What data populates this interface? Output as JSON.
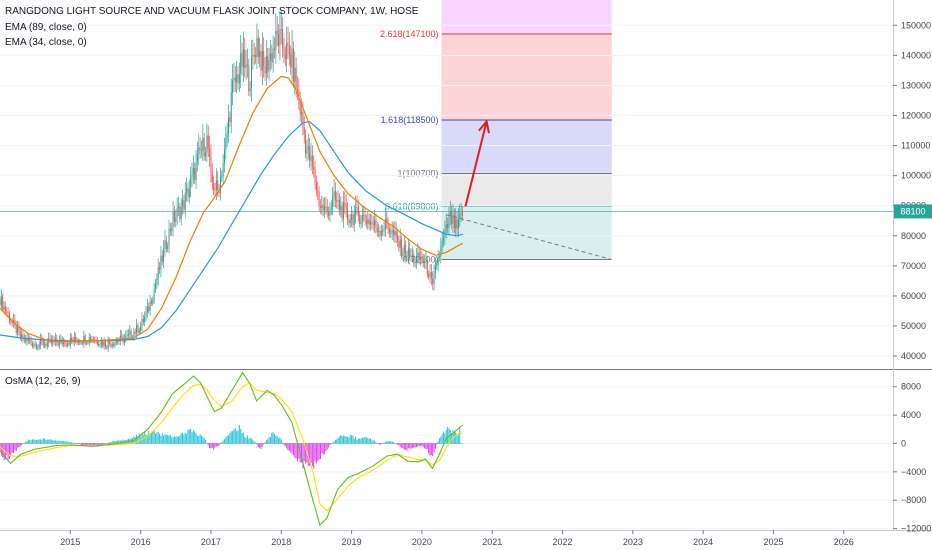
{
  "header": {
    "title": "RANGDONG LIGHT SOURCE AND VACUUM FLASK JOINT STOCK COMPANY, 1W, HOSE",
    "ema89_label": "EMA (89, close, 0)",
    "ema34_label": "EMA (34, close, 0)",
    "osma_label": "OsMA (12, 26, 9)"
  },
  "price_badge": "88100",
  "colors": {
    "candle_up": "#26a69a",
    "candle_down": "#ef5350",
    "ema34": "#f57c00",
    "ema89": "#2196f3",
    "arrow": "#e01e1e",
    "osma_pos": "#26c6da",
    "osma_neg": "#e040fb",
    "macd_line": "#66bb1a",
    "signal_line": "#ffe000"
  },
  "chart_data": [
    {
      "type": "candlestick",
      "x_axis": {
        "labels": [
          "2015",
          "2016",
          "2017",
          "2018",
          "2019",
          "2020",
          "2021",
          "2022",
          "2023",
          "2024",
          "2025",
          "2026"
        ],
        "range": [
          2014.0,
          2026.7
        ]
      },
      "y_axis": {
        "ticks": [
          40000,
          50000,
          60000,
          70000,
          80000,
          90000,
          100000,
          110000,
          120000,
          130000,
          140000,
          150000
        ],
        "range": [
          35700,
          158400
        ]
      },
      "close_series": [
        [
          2014.0,
          59000
        ],
        [
          2014.15,
          52000
        ],
        [
          2014.3,
          46000
        ],
        [
          2014.5,
          44000
        ],
        [
          2014.8,
          44500
        ],
        [
          2015.0,
          45000
        ],
        [
          2015.3,
          46000
        ],
        [
          2015.5,
          44000
        ],
        [
          2015.8,
          46000
        ],
        [
          2016.0,
          50000
        ],
        [
          2016.1,
          55000
        ],
        [
          2016.2,
          63000
        ],
        [
          2016.3,
          72000
        ],
        [
          2016.45,
          85000
        ],
        [
          2016.6,
          90000
        ],
        [
          2016.75,
          100000
        ],
        [
          2016.85,
          108000
        ],
        [
          2016.95,
          112000
        ],
        [
          2017.0,
          98000
        ],
        [
          2017.1,
          95000
        ],
        [
          2017.2,
          108000
        ],
        [
          2017.3,
          128000
        ],
        [
          2017.45,
          138000
        ],
        [
          2017.55,
          132000
        ],
        [
          2017.65,
          145000
        ],
        [
          2017.75,
          135000
        ],
        [
          2017.85,
          140000
        ],
        [
          2017.95,
          146000
        ],
        [
          2018.05,
          142000
        ],
        [
          2018.15,
          138000
        ],
        [
          2018.25,
          125000
        ],
        [
          2018.35,
          110000
        ],
        [
          2018.45,
          102000
        ],
        [
          2018.55,
          90000
        ],
        [
          2018.65,
          88000
        ],
        [
          2018.75,
          92000
        ],
        [
          2018.85,
          89000
        ],
        [
          2018.95,
          86000
        ],
        [
          2019.1,
          87000
        ],
        [
          2019.25,
          85000
        ],
        [
          2019.4,
          82000
        ],
        [
          2019.5,
          84000
        ],
        [
          2019.6,
          80000
        ],
        [
          2019.7,
          76000
        ],
        [
          2019.8,
          74000
        ],
        [
          2019.9,
          72000
        ],
        [
          2020.0,
          72500
        ],
        [
          2020.1,
          68000
        ],
        [
          2020.15,
          62000
        ],
        [
          2020.2,
          70000
        ],
        [
          2020.3,
          78000
        ],
        [
          2020.4,
          86000
        ],
        [
          2020.5,
          82000
        ],
        [
          2020.58,
          88100
        ]
      ],
      "ema34": [
        [
          2014.0,
          56000
        ],
        [
          2014.2,
          51000
        ],
        [
          2014.4,
          47500
        ],
        [
          2014.7,
          45000
        ],
        [
          2015.0,
          44800
        ],
        [
          2015.5,
          45200
        ],
        [
          2015.9,
          46000
        ],
        [
          2016.1,
          49000
        ],
        [
          2016.3,
          56000
        ],
        [
          2016.5,
          66000
        ],
        [
          2016.7,
          78000
        ],
        [
          2016.9,
          88000
        ],
        [
          2017.0,
          91000
        ],
        [
          2017.2,
          98000
        ],
        [
          2017.4,
          110000
        ],
        [
          2017.6,
          121000
        ],
        [
          2017.8,
          129000
        ],
        [
          2018.0,
          133000
        ],
        [
          2018.1,
          132500
        ],
        [
          2018.2,
          129000
        ],
        [
          2018.35,
          120000
        ],
        [
          2018.55,
          108000
        ],
        [
          2018.75,
          100000
        ],
        [
          2018.95,
          94000
        ],
        [
          2019.15,
          90000
        ],
        [
          2019.4,
          86000
        ],
        [
          2019.6,
          83000
        ],
        [
          2019.8,
          79000
        ],
        [
          2020.0,
          75500
        ],
        [
          2020.2,
          73500
        ],
        [
          2020.35,
          74500
        ],
        [
          2020.5,
          76500
        ],
        [
          2020.58,
          77500
        ]
      ],
      "ema89": [
        [
          2014.0,
          47000
        ],
        [
          2014.3,
          46000
        ],
        [
          2014.7,
          45200
        ],
        [
          2015.0,
          45000
        ],
        [
          2015.5,
          45100
        ],
        [
          2015.9,
          45500
        ],
        [
          2016.1,
          46500
        ],
        [
          2016.3,
          49500
        ],
        [
          2016.5,
          55000
        ],
        [
          2016.7,
          62000
        ],
        [
          2016.9,
          69000
        ],
        [
          2017.1,
          76000
        ],
        [
          2017.3,
          84000
        ],
        [
          2017.5,
          92000
        ],
        [
          2017.7,
          100000
        ],
        [
          2017.9,
          107000
        ],
        [
          2018.1,
          113000
        ],
        [
          2018.3,
          117500
        ],
        [
          2018.4,
          118000
        ],
        [
          2018.55,
          115000
        ],
        [
          2018.75,
          108000
        ],
        [
          2018.95,
          101000
        ],
        [
          2019.2,
          95000
        ],
        [
          2019.5,
          90000
        ],
        [
          2019.8,
          86500
        ],
        [
          2020.0,
          84000
        ],
        [
          2020.2,
          82000
        ],
        [
          2020.35,
          80500
        ],
        [
          2020.5,
          80000
        ],
        [
          2020.58,
          80500
        ]
      ],
      "fibonacci": {
        "levels": [
          {
            "label": "0(72100)",
            "value": 72100
          },
          {
            "label": "0.618(89800)",
            "value": 89800
          },
          {
            "label": "1(100700)",
            "value": 100700
          },
          {
            "label": "1.618(118500)",
            "value": 118500
          },
          {
            "label": "2.618(147100)",
            "value": 147100
          }
        ],
        "x_start": 2020.28,
        "x_end": 2022.7
      },
      "trend_dashed": [
        [
          2020.35,
          87000
        ],
        [
          2022.7,
          72100
        ]
      ],
      "arrow": [
        [
          2020.62,
          89800
        ],
        [
          2020.92,
          118000
        ]
      ],
      "current_price": 88100
    },
    {
      "type": "bar",
      "name": "OsMA",
      "y_axis": {
        "ticks": [
          -12000,
          -8000,
          -4000,
          0,
          4000,
          8000
        ],
        "tick_labels": [
          "−12000",
          "−8000",
          "−4000",
          "0",
          "4000",
          "8000"
        ],
        "range": [
          -12200,
          10500
        ]
      },
      "histogram": [
        [
          2014.0,
          -1500
        ],
        [
          2014.1,
          -2200
        ],
        [
          2014.2,
          -1200
        ],
        [
          2014.3,
          -300
        ],
        [
          2014.4,
          500
        ],
        [
          2014.6,
          700
        ],
        [
          2014.8,
          400
        ],
        [
          2015.0,
          200
        ],
        [
          2015.2,
          -300
        ],
        [
          2015.4,
          -400
        ],
        [
          2015.6,
          300
        ],
        [
          2015.8,
          500
        ],
        [
          2016.0,
          1200
        ],
        [
          2016.15,
          1800
        ],
        [
          2016.3,
          1400
        ],
        [
          2016.45,
          900
        ],
        [
          2016.6,
          1500
        ],
        [
          2016.75,
          1900
        ],
        [
          2016.9,
          800
        ],
        [
          2017.0,
          -900
        ],
        [
          2017.1,
          -400
        ],
        [
          2017.25,
          1200
        ],
        [
          2017.4,
          2200
        ],
        [
          2017.5,
          1000
        ],
        [
          2017.6,
          600
        ],
        [
          2017.7,
          -800
        ],
        [
          2017.8,
          600
        ],
        [
          2017.9,
          1600
        ],
        [
          2018.0,
          500
        ],
        [
          2018.1,
          -1200
        ],
        [
          2018.2,
          -2200
        ],
        [
          2018.3,
          -3000
        ],
        [
          2018.4,
          -3300
        ],
        [
          2018.5,
          -2600
        ],
        [
          2018.6,
          -1400
        ],
        [
          2018.7,
          -200
        ],
        [
          2018.8,
          800
        ],
        [
          2018.9,
          1300
        ],
        [
          2019.0,
          1000
        ],
        [
          2019.1,
          600
        ],
        [
          2019.2,
          900
        ],
        [
          2019.3,
          500
        ],
        [
          2019.4,
          -200
        ],
        [
          2019.5,
          300
        ],
        [
          2019.6,
          200
        ],
        [
          2019.7,
          -600
        ],
        [
          2019.8,
          -900
        ],
        [
          2019.9,
          -500
        ],
        [
          2020.0,
          -300
        ],
        [
          2020.1,
          -1200
        ],
        [
          2020.15,
          -1800
        ],
        [
          2020.25,
          800
        ],
        [
          2020.35,
          2000
        ],
        [
          2020.45,
          1600
        ],
        [
          2020.55,
          1900
        ]
      ],
      "macd_line": [
        [
          2014.0,
          -1000
        ],
        [
          2014.15,
          -2800
        ],
        [
          2014.3,
          -1500
        ],
        [
          2014.5,
          -800
        ],
        [
          2014.8,
          -300
        ],
        [
          2015.0,
          -200
        ],
        [
          2015.3,
          -400
        ],
        [
          2015.6,
          -100
        ],
        [
          2015.9,
          400
        ],
        [
          2016.1,
          2000
        ],
        [
          2016.3,
          4500
        ],
        [
          2016.45,
          7000
        ],
        [
          2016.6,
          8200
        ],
        [
          2016.75,
          9500
        ],
        [
          2016.85,
          8600
        ],
        [
          2016.95,
          6500
        ],
        [
          2017.05,
          4500
        ],
        [
          2017.15,
          5000
        ],
        [
          2017.3,
          7500
        ],
        [
          2017.45,
          10000
        ],
        [
          2017.55,
          8500
        ],
        [
          2017.65,
          6000
        ],
        [
          2017.8,
          7500
        ],
        [
          2017.9,
          6800
        ],
        [
          2018.0,
          5500
        ],
        [
          2018.15,
          3000
        ],
        [
          2018.3,
          -2500
        ],
        [
          2018.45,
          -8000
        ],
        [
          2018.55,
          -11500
        ],
        [
          2018.65,
          -10500
        ],
        [
          2018.8,
          -6500
        ],
        [
          2018.95,
          -4800
        ],
        [
          2019.1,
          -4200
        ],
        [
          2019.3,
          -3200
        ],
        [
          2019.5,
          -1800
        ],
        [
          2019.65,
          -1500
        ],
        [
          2019.8,
          -2500
        ],
        [
          2019.95,
          -2600
        ],
        [
          2020.05,
          -2200
        ],
        [
          2020.15,
          -3500
        ],
        [
          2020.25,
          -1500
        ],
        [
          2020.35,
          800
        ],
        [
          2020.45,
          1500
        ],
        [
          2020.58,
          2600
        ]
      ],
      "signal_line": [
        [
          2014.0,
          -500
        ],
        [
          2014.15,
          -1800
        ],
        [
          2014.3,
          -1800
        ],
        [
          2014.5,
          -1200
        ],
        [
          2014.8,
          -600
        ],
        [
          2015.0,
          -300
        ],
        [
          2015.3,
          -300
        ],
        [
          2015.6,
          -200
        ],
        [
          2015.9,
          0
        ],
        [
          2016.1,
          1000
        ],
        [
          2016.3,
          3000
        ],
        [
          2016.45,
          5000
        ],
        [
          2016.6,
          6800
        ],
        [
          2016.75,
          8200
        ],
        [
          2016.85,
          8300
        ],
        [
          2016.95,
          7500
        ],
        [
          2017.05,
          6000
        ],
        [
          2017.15,
          5200
        ],
        [
          2017.3,
          6000
        ],
        [
          2017.45,
          8000
        ],
        [
          2017.55,
          8500
        ],
        [
          2017.65,
          7500
        ],
        [
          2017.8,
          7200
        ],
        [
          2017.9,
          7000
        ],
        [
          2018.0,
          6300
        ],
        [
          2018.15,
          4500
        ],
        [
          2018.3,
          800
        ],
        [
          2018.45,
          -4000
        ],
        [
          2018.55,
          -8500
        ],
        [
          2018.65,
          -9500
        ],
        [
          2018.8,
          -7800
        ],
        [
          2018.95,
          -6000
        ],
        [
          2019.1,
          -4800
        ],
        [
          2019.3,
          -3800
        ],
        [
          2019.5,
          -2400
        ],
        [
          2019.65,
          -1600
        ],
        [
          2019.8,
          -1900
        ],
        [
          2019.95,
          -2300
        ],
        [
          2020.05,
          -2300
        ],
        [
          2020.15,
          -3000
        ],
        [
          2020.25,
          -2400
        ],
        [
          2020.35,
          -500
        ],
        [
          2020.45,
          900
        ],
        [
          2020.58,
          1500
        ]
      ]
    }
  ]
}
